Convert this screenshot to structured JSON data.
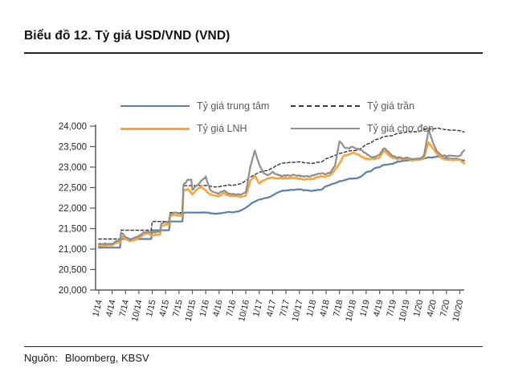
{
  "page": {
    "title": "Biểu đồ 12. Tỷ giá USD/VND (VND)",
    "source_label": "Nguồn:",
    "source_value": "Bloomberg, KBSV"
  },
  "chart_data": {
    "type": "line",
    "title": "Tỷ giá USD/VND (VND)",
    "x_unit": "month",
    "x_start": "1/2014",
    "x_end": "11/2020",
    "x_tick_every_months": 3,
    "x_tick_labels": [
      "1/14",
      "4/14",
      "7/14",
      "10/14",
      "1/15",
      "4/15",
      "7/15",
      "10/15",
      "1/16",
      "4/16",
      "7/16",
      "10/16",
      "1/17",
      "4/17",
      "7/17",
      "10/17",
      "1/18",
      "4/18",
      "7/18",
      "10/18",
      "1/19",
      "4/19",
      "7/19",
      "10/19",
      "1/20",
      "4/20",
      "7/20",
      "10/20"
    ],
    "ylim": [
      20000,
      24000
    ],
    "ytick_step": 500,
    "y_tick_labels": [
      "20,000",
      "20,500",
      "21,000",
      "21,500",
      "22,000",
      "22,500",
      "23,000",
      "23,500",
      "24,000"
    ],
    "grid": false,
    "legend_position": "top",
    "axis_color": "#595959",
    "label_color": "#262626",
    "legend_text_color": "#595959",
    "series": [
      {
        "id": "trung-tam",
        "name": "Tỷ giá trung tâm",
        "color": "#5B80A8",
        "dash": "solid",
        "width": 2.2,
        "values": [
          21036,
          21036,
          21036,
          21036,
          21036,
          21246,
          21246,
          21246,
          21246,
          21246,
          21246,
          21246,
          21458,
          21458,
          21458,
          21458,
          21673,
          21673,
          21673,
          21890,
          21890,
          21890,
          21890,
          21890,
          21896,
          21878,
          21862,
          21866,
          21885,
          21908,
          21895,
          21918,
          21940,
          22012,
          22092,
          22154,
          22204,
          22232,
          22258,
          22312,
          22372,
          22420,
          22432,
          22442,
          22446,
          22458,
          22436,
          22426,
          22420,
          22442,
          22452,
          22532,
          22568,
          22612,
          22652,
          22678,
          22712,
          22726,
          22726,
          22782,
          22872,
          22902,
          22980,
          23002,
          23058,
          23066,
          23082,
          23132,
          23142,
          23162,
          23172,
          23166,
          23176,
          23216,
          23236,
          23232,
          23262,
          23232,
          23212,
          23206,
          23206,
          23192,
          23160
        ]
      },
      {
        "id": "tran",
        "name": "Tỷ giá trần",
        "color": "#333333",
        "dash": "dashed",
        "width": 1.4,
        "values": [
          21246,
          21246,
          21246,
          21246,
          21246,
          21458,
          21458,
          21458,
          21458,
          21458,
          21458,
          21458,
          21673,
          21673,
          21673,
          21673,
          21890,
          21890,
          21890,
          22547,
          22547,
          22547,
          22547,
          22547,
          22553,
          22534,
          22518,
          22522,
          22542,
          22565,
          22552,
          22576,
          22598,
          22672,
          22755,
          22819,
          22870,
          22899,
          22926,
          22981,
          23043,
          23093,
          23105,
          23115,
          23119,
          23132,
          23109,
          23099,
          23093,
          23115,
          23126,
          23208,
          23245,
          23290,
          23332,
          23358,
          23393,
          23408,
          23408,
          23465,
          23558,
          23589,
          23669,
          23692,
          23750,
          23758,
          23774,
          23826,
          23836,
          23857,
          23867,
          23861,
          23871,
          23912,
          23933,
          23929,
          23955,
          23929,
          23908,
          23902,
          23902,
          23888,
          23855
        ]
      },
      {
        "id": "lnh",
        "name": "Tỷ giá LNH",
        "color": "#F6A43B",
        "dash": "solid",
        "width": 2.6,
        "values": [
          21080,
          21085,
          21095,
          21090,
          21155,
          21330,
          21240,
          21195,
          21225,
          21280,
          21350,
          21385,
          21330,
          21350,
          21555,
          21605,
          21810,
          21835,
          21815,
          22420,
          22470,
          22340,
          22450,
          22520,
          22420,
          22340,
          22300,
          22295,
          22365,
          22305,
          22295,
          22295,
          22270,
          22305,
          22660,
          22790,
          22600,
          22680,
          22725,
          22745,
          22730,
          22725,
          22725,
          22730,
          22735,
          22720,
          22705,
          22700,
          22710,
          22748,
          22778,
          22772,
          22812,
          22935,
          23090,
          23290,
          23300,
          23350,
          23320,
          23250,
          23198,
          23198,
          23198,
          23238,
          23408,
          23308,
          23218,
          23198,
          23198,
          23198,
          23178,
          23168,
          23182,
          23242,
          23605,
          23445,
          23325,
          23212,
          23182,
          23178,
          23182,
          23182,
          23085
        ]
      },
      {
        "id": "cho-den",
        "name": "Tỷ giá chợ đen",
        "color": "#8E8E8E",
        "dash": "solid",
        "width": 2.2,
        "values": [
          21120,
          21125,
          21135,
          21130,
          21205,
          21405,
          21300,
          21235,
          21265,
          21320,
          21400,
          21425,
          21400,
          21420,
          21625,
          21655,
          21870,
          21885,
          21870,
          22560,
          22690,
          22450,
          22550,
          22660,
          22760,
          22450,
          22380,
          22360,
          22430,
          22360,
          22340,
          22340,
          22320,
          22380,
          23010,
          23390,
          23060,
          22850,
          22800,
          22870,
          22820,
          22785,
          22790,
          22800,
          22810,
          22790,
          22770,
          22780,
          22792,
          22825,
          22845,
          22835,
          22875,
          23035,
          23640,
          23490,
          23450,
          23500,
          23445,
          23395,
          23330,
          23255,
          23250,
          23300,
          23465,
          23370,
          23260,
          23235,
          23225,
          23225,
          23205,
          23195,
          23205,
          23285,
          23915,
          23585,
          23355,
          23285,
          23270,
          23270,
          23270,
          23270,
          23410
        ]
      }
    ]
  }
}
